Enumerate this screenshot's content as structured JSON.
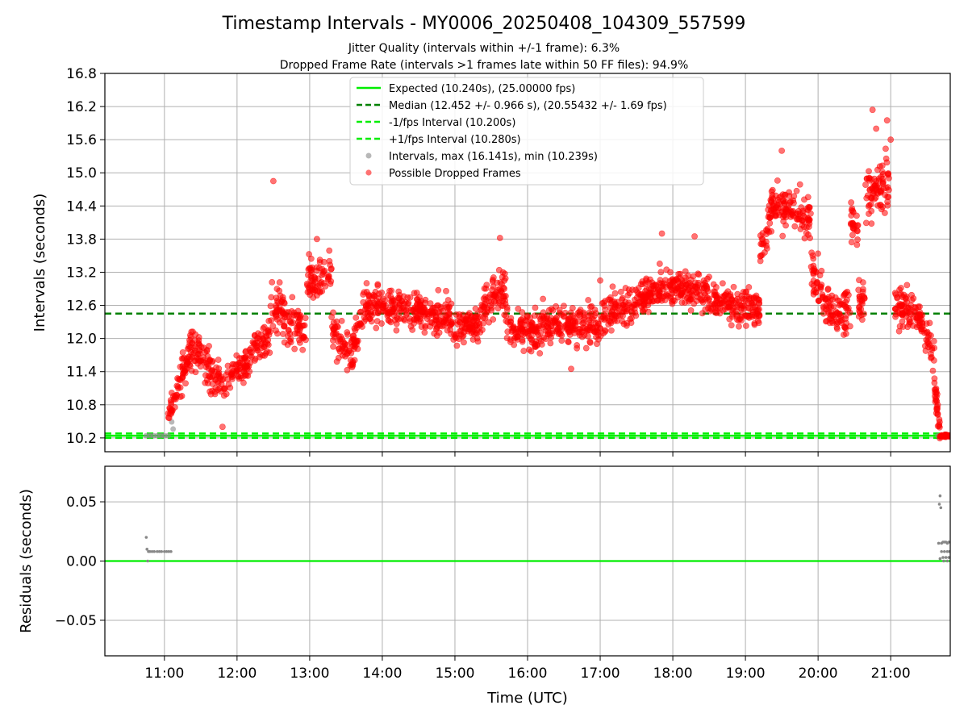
{
  "chart_data": [
    {
      "type": "scatter",
      "title": "Timestamp Intervals - MY0006_20250408_104309_557599",
      "subtitle_lines": [
        "Jitter Quality (intervals within +/-1 frame): 6.3%",
        "Dropped Frame Rate (intervals >1 frames late within 50 FF files): 94.9%"
      ],
      "ylabel": "Intervals (seconds)",
      "xlim_hours": [
        10.18,
        21.82
      ],
      "ylim": [
        9.95,
        16.8
      ],
      "yticks": [
        "10.2",
        "10.8",
        "11.4",
        "12.0",
        "12.6",
        "13.2",
        "13.8",
        "14.4",
        "15.0",
        "15.6",
        "16.2",
        "16.8"
      ],
      "grid": true,
      "legend_position": "upper-center",
      "lines": [
        {
          "name": "Expected (10.240s), (25.00000 fps)",
          "y": 10.24,
          "color": "#00ee00",
          "style": "solid"
        },
        {
          "name": "Median (12.452 +/- 0.966 s), (20.55432 +/- 1.69 fps)",
          "y": 12.452,
          "color": "#008000",
          "style": "dashed"
        },
        {
          "name": "-1/fps Interval (10.200s)",
          "y": 10.2,
          "color": "#00ee00",
          "style": "dashed"
        },
        {
          "name": "+1/fps Interval (10.280s)",
          "y": 10.28,
          "color": "#00ee00",
          "style": "dashed"
        }
      ],
      "series": [
        {
          "name": "Intervals, max (16.141s), min (10.239s)",
          "color": "#888888",
          "points": [
            [
              10.75,
              10.24
            ],
            [
              10.8,
              10.24
            ],
            [
              10.85,
              10.24
            ],
            [
              10.9,
              10.24
            ],
            [
              10.95,
              10.24
            ],
            [
              11.0,
              10.24
            ],
            [
              11.05,
              10.24
            ],
            [
              11.1,
              10.49
            ],
            [
              11.12,
              10.36
            ],
            [
              21.65,
              10.24
            ],
            [
              21.7,
              10.24
            ],
            [
              21.75,
              10.24
            ],
            [
              21.8,
              10.24
            ]
          ]
        },
        {
          "name": "Possible Dropped Frames",
          "color": "#ff0000",
          "segments": [
            {
              "t0": 11.05,
              "t1": 11.12,
              "y0": 10.55,
              "y1": 10.9,
              "spread": 0.18,
              "n": 16
            },
            {
              "t0": 11.12,
              "t1": 11.35,
              "y0": 10.9,
              "y1": 11.75,
              "spread": 0.28,
              "n": 55
            },
            {
              "t0": 11.35,
              "t1": 11.55,
              "y0": 11.85,
              "y1": 11.7,
              "spread": 0.28,
              "n": 45
            },
            {
              "t0": 11.55,
              "t1": 11.85,
              "y0": 11.55,
              "y1": 11.05,
              "spread": 0.3,
              "n": 60
            },
            {
              "t0": 11.85,
              "t1": 12.2,
              "y0": 11.35,
              "y1": 11.6,
              "spread": 0.3,
              "n": 70
            },
            {
              "t0": 12.2,
              "t1": 12.45,
              "y0": 11.8,
              "y1": 12.0,
              "spread": 0.3,
              "n": 50
            },
            {
              "t0": 12.45,
              "t1": 12.65,
              "y0": 12.6,
              "y1": 12.5,
              "spread": 0.35,
              "n": 45
            },
            {
              "t0": 12.65,
              "t1": 12.95,
              "y0": 12.25,
              "y1": 12.2,
              "spread": 0.35,
              "n": 60
            },
            {
              "t0": 12.95,
              "t1": 13.3,
              "y0": 13.0,
              "y1": 13.2,
              "spread": 0.35,
              "n": 70
            },
            {
              "t0": 13.3,
              "t1": 13.55,
              "y0": 12.2,
              "y1": 11.7,
              "spread": 0.35,
              "n": 50
            },
            {
              "t0": 13.55,
              "t1": 13.75,
              "y0": 11.5,
              "y1": 12.6,
              "spread": 0.35,
              "n": 45
            },
            {
              "t0": 13.75,
              "t1": 14.5,
              "y0": 12.6,
              "y1": 12.55,
              "spread": 0.3,
              "n": 160
            },
            {
              "t0": 14.5,
              "t1": 15.0,
              "y0": 12.5,
              "y1": 12.3,
              "spread": 0.32,
              "n": 110
            },
            {
              "t0": 15.0,
              "t1": 15.4,
              "y0": 12.1,
              "y1": 12.4,
              "spread": 0.3,
              "n": 90
            },
            {
              "t0": 15.4,
              "t1": 15.7,
              "y0": 12.6,
              "y1": 12.95,
              "spread": 0.3,
              "n": 70
            },
            {
              "t0": 15.7,
              "t1": 16.2,
              "y0": 12.2,
              "y1": 12.1,
              "spread": 0.3,
              "n": 110
            },
            {
              "t0": 16.2,
              "t1": 17.0,
              "y0": 12.3,
              "y1": 12.2,
              "spread": 0.3,
              "n": 170
            },
            {
              "t0": 17.0,
              "t1": 17.7,
              "y0": 12.4,
              "y1": 12.8,
              "spread": 0.3,
              "n": 150
            },
            {
              "t0": 17.7,
              "t1": 18.5,
              "y0": 12.95,
              "y1": 12.85,
              "spread": 0.3,
              "n": 170
            },
            {
              "t0": 18.5,
              "t1": 19.2,
              "y0": 12.7,
              "y1": 12.55,
              "spread": 0.3,
              "n": 150
            },
            {
              "t0": 19.2,
              "t1": 19.35,
              "y0": 13.5,
              "y1": 14.3,
              "spread": 0.35,
              "n": 30
            },
            {
              "t0": 19.35,
              "t1": 19.9,
              "y0": 14.4,
              "y1": 14.2,
              "spread": 0.35,
              "n": 120
            },
            {
              "t0": 19.9,
              "t1": 20.05,
              "y0": 13.4,
              "y1": 12.9,
              "spread": 0.35,
              "n": 35
            },
            {
              "t0": 20.05,
              "t1": 20.45,
              "y0": 12.6,
              "y1": 12.5,
              "spread": 0.35,
              "n": 85
            },
            {
              "t0": 20.45,
              "t1": 20.55,
              "y0": 14.1,
              "y1": 14.0,
              "spread": 0.35,
              "n": 25
            },
            {
              "t0": 20.55,
              "t1": 20.65,
              "y0": 12.7,
              "y1": 12.6,
              "spread": 0.35,
              "n": 25
            },
            {
              "t0": 20.65,
              "t1": 20.98,
              "y0": 14.5,
              "y1": 14.8,
              "spread": 0.5,
              "n": 80
            },
            {
              "t0": 21.05,
              "t1": 21.4,
              "y0": 12.6,
              "y1": 12.4,
              "spread": 0.3,
              "n": 80
            },
            {
              "t0": 21.4,
              "t1": 21.6,
              "y0": 12.3,
              "y1": 11.7,
              "spread": 0.25,
              "n": 40
            },
            {
              "t0": 21.6,
              "t1": 21.68,
              "y0": 11.2,
              "y1": 10.35,
              "spread": 0.2,
              "n": 30
            },
            {
              "t0": 21.68,
              "t1": 21.82,
              "y0": 10.24,
              "y1": 10.24,
              "spread": 0.02,
              "n": 30
            }
          ],
          "outliers": [
            [
              12.5,
              14.85
            ],
            [
              15.62,
              13.82
            ],
            [
              17.85,
              13.9
            ],
            [
              18.3,
              13.85
            ],
            [
              19.5,
              15.4
            ],
            [
              20.75,
              16.14
            ],
            [
              20.8,
              15.8
            ],
            [
              20.95,
              15.95
            ],
            [
              21.0,
              15.6
            ],
            [
              11.8,
              10.4
            ],
            [
              13.1,
              13.8
            ],
            [
              16.6,
              11.45
            ],
            [
              17.0,
              13.05
            ]
          ]
        }
      ]
    },
    {
      "type": "scatter",
      "xlabel": "Time (UTC)",
      "ylabel": "Residuals (seconds)",
      "xlim_hours": [
        10.18,
        21.82
      ],
      "ylim": [
        -0.08,
        0.08
      ],
      "yticks": [
        "−0.05",
        "0.00",
        "0.05"
      ],
      "ytick_values": [
        -0.05,
        0.0,
        0.05
      ],
      "xticks": [
        "11:00",
        "12:00",
        "13:00",
        "14:00",
        "15:00",
        "16:00",
        "17:00",
        "18:00",
        "19:00",
        "20:00",
        "21:00"
      ],
      "xtick_values": [
        11,
        12,
        13,
        14,
        15,
        16,
        17,
        18,
        19,
        20,
        21
      ],
      "grid": true,
      "zero_line_color": "#00ee00",
      "series": [
        {
          "name": "Residuals",
          "color": "#888888",
          "points": [
            [
              10.75,
              0.02
            ],
            [
              10.76,
              0.01
            ],
            [
              10.77,
              0.0
            ],
            [
              10.78,
              0.008
            ],
            [
              10.8,
              0.008
            ],
            [
              10.83,
              0.008
            ],
            [
              10.86,
              0.008
            ],
            [
              10.9,
              0.008
            ],
            [
              10.93,
              0.008
            ],
            [
              10.96,
              0.008
            ],
            [
              11.0,
              0.008
            ],
            [
              11.03,
              0.008
            ],
            [
              11.06,
              0.008
            ],
            [
              11.09,
              0.008
            ],
            [
              21.68,
              0.055
            ],
            [
              21.67,
              0.048
            ],
            [
              21.69,
              0.045
            ],
            [
              21.66,
              0.015
            ],
            [
              21.7,
              0.015
            ],
            [
              21.72,
              0.016
            ],
            [
              21.74,
              0.016
            ],
            [
              21.76,
              0.016
            ],
            [
              21.78,
              0.015
            ],
            [
              21.8,
              0.016
            ],
            [
              21.7,
              0.008
            ],
            [
              21.74,
              0.008
            ],
            [
              21.78,
              0.008
            ],
            [
              21.72,
              0.003
            ],
            [
              21.76,
              0.003
            ],
            [
              21.8,
              0.003
            ],
            [
              21.68,
              0.002
            ],
            [
              21.73,
              0.0
            ],
            [
              21.78,
              0.0
            ],
            [
              21.81,
              0.008
            ]
          ]
        }
      ]
    }
  ]
}
